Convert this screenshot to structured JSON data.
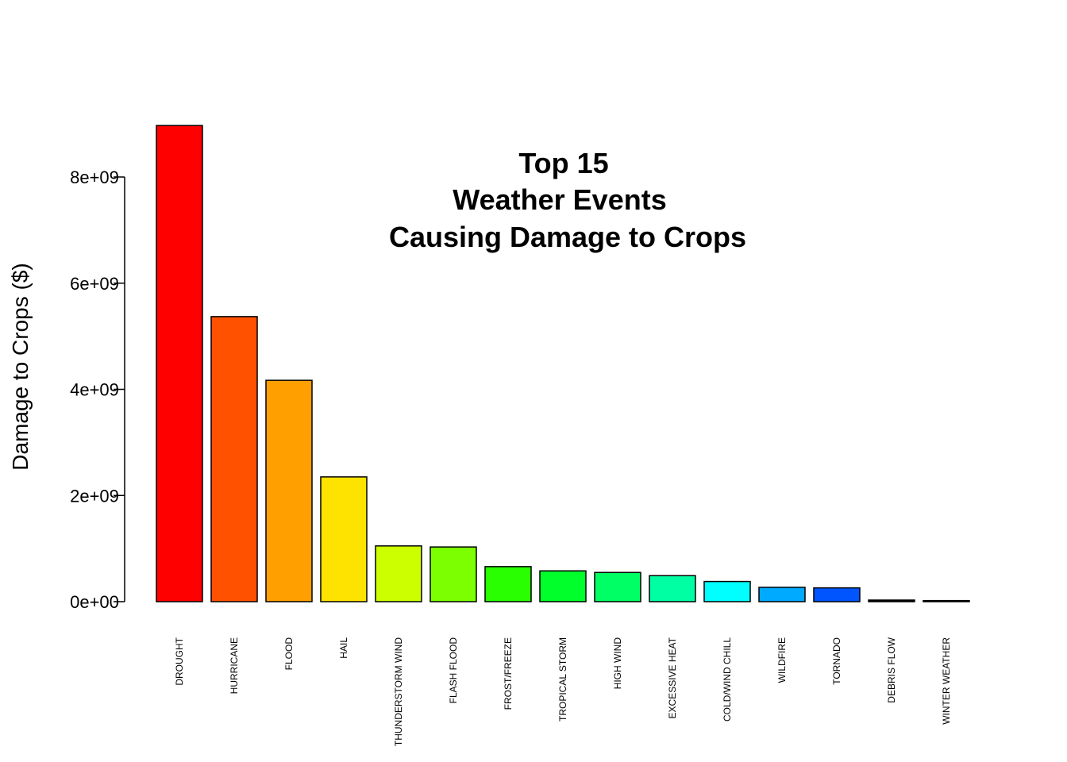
{
  "chart_data": {
    "type": "bar",
    "title_lines": [
      "Top 15",
      "Weather Events",
      "Causing Damage to Crops"
    ],
    "xlabel": "",
    "ylabel": "Damage to Crops ($)",
    "ylim": [
      0,
      9000000000
    ],
    "yticks": [
      0,
      2000000000,
      4000000000,
      6000000000,
      8000000000
    ],
    "ytick_labels": [
      "0e+00",
      "2e+09",
      "4e+09",
      "6e+09",
      "8e+09"
    ],
    "categories": [
      "DROUGHT",
      "HURRICANE",
      "FLOOD",
      "HAIL",
      "THUNDERSTORM WIND",
      "FLASH FLOOD",
      "FROST/FREEZE",
      "TROPICAL STORM",
      "HIGH WIND",
      "EXCESSIVE HEAT",
      "COLD/WIND CHILL",
      "WILDFIRE",
      "TORNADO",
      "DEBRIS FLOW",
      "WINTER WEATHER"
    ],
    "values": [
      8970000000,
      5370000000,
      4170000000,
      2350000000,
      1050000000,
      1030000000,
      660000000,
      580000000,
      550000000,
      490000000,
      380000000,
      270000000,
      260000000,
      30000000,
      20000000
    ],
    "colors": [
      "#FF0000",
      "#FF5100",
      "#FF9F00",
      "#FFE300",
      "#CCFF00",
      "#7CFF00",
      "#29FF00",
      "#00FF2B",
      "#00FF64",
      "#00FFA3",
      "#00FFFF",
      "#00AAFF",
      "#0055FF",
      "#000000",
      "#000000"
    ],
    "grid": false,
    "legend": "none"
  }
}
